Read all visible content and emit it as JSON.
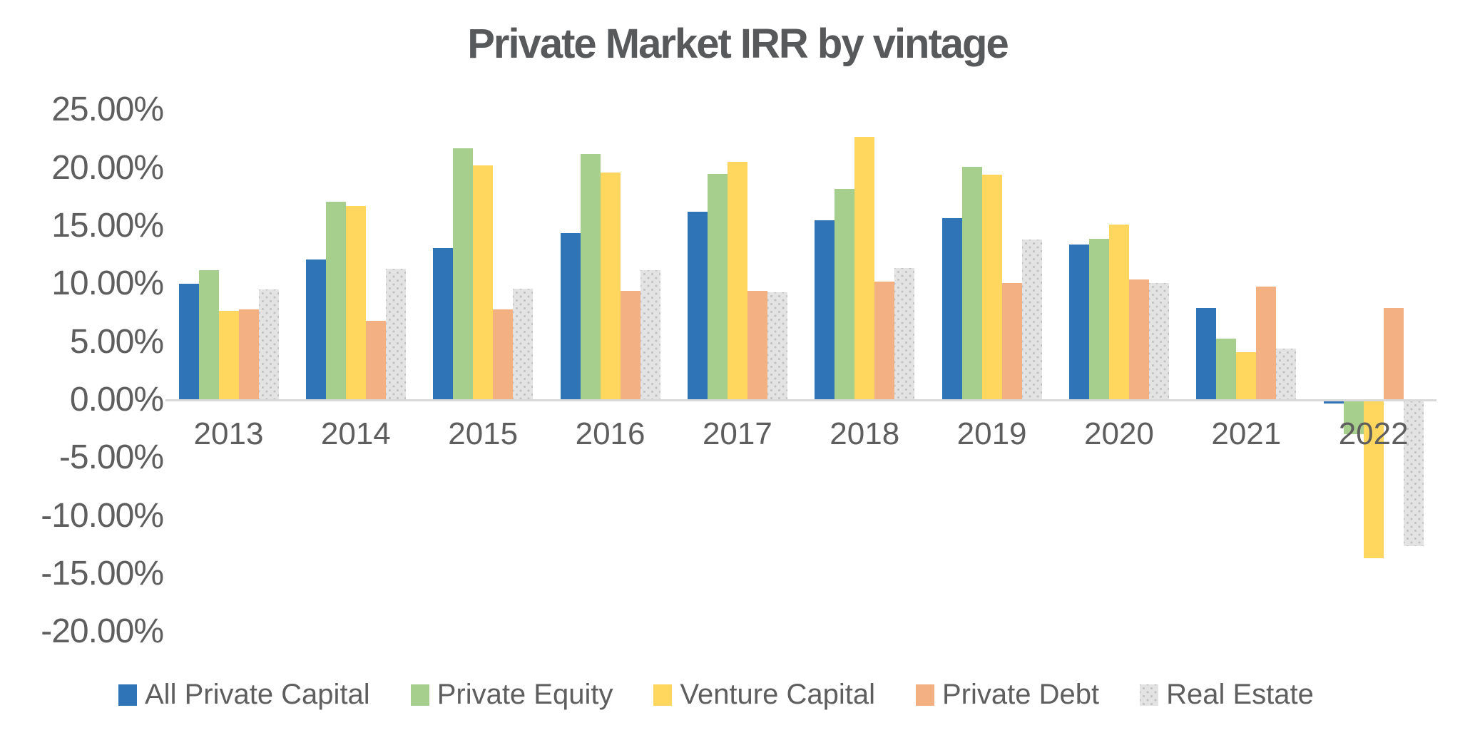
{
  "page": {
    "background": "#FFFFFF",
    "text_color": "#5E5E5E",
    "axis_line_color": "#D9D9D9"
  },
  "chart_data": {
    "type": "bar",
    "title": "Private Market IRR by vintage",
    "xlabel": "",
    "ylabel": "",
    "categories": [
      "2013",
      "2014",
      "2015",
      "2016",
      "2017",
      "2018",
      "2019",
      "2020",
      "2021",
      "2022"
    ],
    "series": [
      {
        "name": "All Private Capital",
        "color": "#2E74B6",
        "values": [
          10.0,
          12.1,
          13.1,
          14.4,
          16.2,
          15.5,
          15.7,
          13.4,
          7.9,
          -0.2
        ]
      },
      {
        "name": "Private Equity",
        "color": "#A6CE8C",
        "values": [
          11.2,
          17.1,
          21.7,
          21.2,
          19.5,
          18.2,
          20.1,
          13.9,
          5.3,
          -2.8
        ]
      },
      {
        "name": "Venture Capital",
        "color": "#FFD75F",
        "values": [
          7.7,
          16.7,
          20.2,
          19.6,
          20.5,
          22.7,
          19.4,
          15.1,
          4.1,
          -13.5
        ]
      },
      {
        "name": "Private Debt",
        "color": "#F3B083",
        "values": [
          7.8,
          6.8,
          7.8,
          9.4,
          9.4,
          10.2,
          10.1,
          10.4,
          9.8,
          7.9
        ]
      },
      {
        "name": "Real Estate",
        "color": "#E3E3E3",
        "pattern": "dots",
        "values": [
          9.5,
          11.3,
          9.6,
          11.2,
          9.3,
          11.4,
          13.8,
          10.1,
          4.4,
          -12.5
        ]
      }
    ],
    "ylim": [
      -20,
      25
    ],
    "y_tick_step": 5,
    "y_tick_labels": [
      "25.00%",
      "20.00%",
      "15.00%",
      "10.00%",
      "5.00%",
      "0.00%",
      "-5.00%",
      "-10.00%",
      "-15.00%",
      "-20.00%"
    ],
    "grid": false,
    "legend_position": "bottom",
    "units": "percent"
  }
}
